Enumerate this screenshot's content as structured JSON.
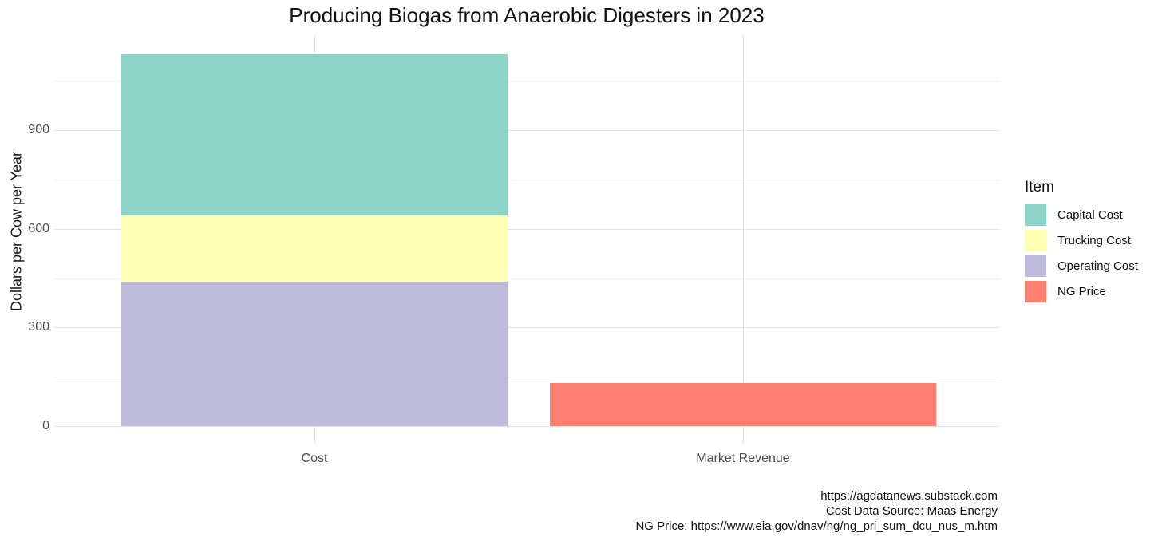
{
  "chart_data": {
    "type": "bar",
    "stacked": true,
    "title": "Producing Biogas from Anaerobic Digesters in 2023",
    "xlabel": "",
    "ylabel": "Dollars per Cow per Year",
    "categories": [
      "Cost",
      "Market Revenue"
    ],
    "series": [
      {
        "name": "Capital Cost",
        "values": [
          490,
          0
        ]
      },
      {
        "name": "Trucking Cost",
        "values": [
          200,
          0
        ]
      },
      {
        "name": "Operating Cost",
        "values": [
          440,
          0
        ]
      },
      {
        "name": "NG Price",
        "values": [
          0,
          130
        ]
      }
    ],
    "bars": [
      {
        "category": "Cost",
        "segments": [
          {
            "name": "Operating Cost",
            "value": 440
          },
          {
            "name": "Trucking Cost",
            "value": 200
          },
          {
            "name": "Capital Cost",
            "value": 490
          }
        ]
      },
      {
        "category": "Market Revenue",
        "segments": [
          {
            "name": "NG Price",
            "value": 130
          }
        ]
      }
    ],
    "palette": {
      "Capital Cost": "#8DD3C7",
      "Trucking Cost": "#FFFFB3",
      "Operating Cost": "#BEBADA",
      "NG Price": "#FB8072"
    },
    "legend_title": "Item",
    "legend_position": "right",
    "legend_order": [
      "Capital Cost",
      "Trucking Cost",
      "Operating Cost",
      "NG Price"
    ],
    "yticks": [
      0,
      300,
      600,
      900
    ],
    "minor_yticks": [
      150,
      450,
      750,
      1050
    ],
    "ylim": [
      0,
      1190
    ],
    "grid": true,
    "grid_major_color": "#e3e3e3",
    "grid_minor_color": "#f0f0f0",
    "caption_lines": [
      "https://agdatanews.substack.com",
      "Cost Data Source: Maas Energy",
      "NG Price: https://www.eia.gov/dnav/ng/ng_pri_sum_dcu_nus_m.htm"
    ]
  }
}
